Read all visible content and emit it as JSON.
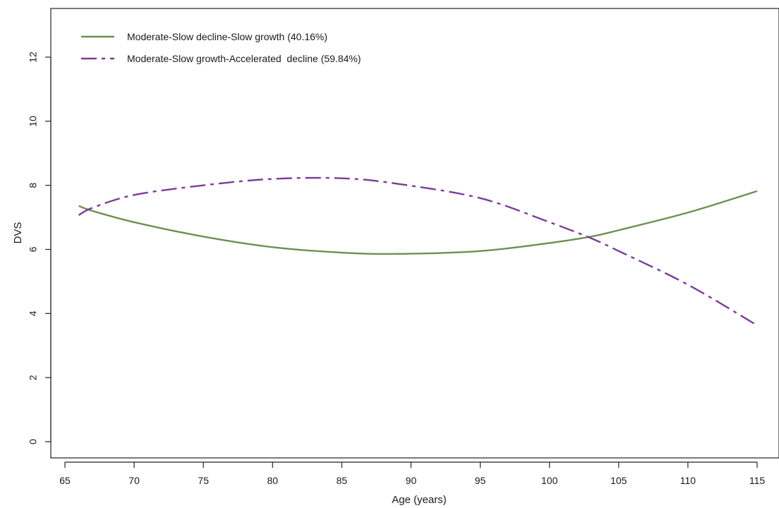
{
  "chart_data": {
    "type": "line",
    "title": "",
    "xlabel": "Age (years)",
    "ylabel": "DVS",
    "xlim": [
      65,
      115
    ],
    "ylim": [
      0,
      12
    ],
    "xticks": [
      65,
      70,
      75,
      80,
      85,
      90,
      95,
      100,
      105,
      110,
      115
    ],
    "yticks": [
      0,
      2,
      4,
      6,
      8,
      10,
      12
    ],
    "x_tick_labels": [
      "65",
      "70",
      "75",
      "80",
      "85",
      "90",
      "95",
      "100",
      "105",
      "110",
      "115"
    ],
    "y_tick_labels": [
      "0",
      "2",
      "4",
      "6",
      "8",
      "10",
      "12"
    ],
    "grid": false,
    "legend_position": "top-left",
    "x": [
      66,
      67,
      70,
      75,
      80,
      85,
      89,
      95,
      100,
      103,
      105,
      110,
      115
    ],
    "series": [
      {
        "name": "Moderate-Slow decline-Slow growth (40.16%)",
        "color": "#6f8f52",
        "style": "solid",
        "values": [
          7.36,
          7.2,
          6.85,
          6.4,
          6.07,
          5.9,
          5.86,
          5.95,
          6.2,
          6.4,
          6.6,
          7.15,
          7.82
        ]
      },
      {
        "name": "Moderate-Slow growth-Accelerated  decline (59.84%)",
        "color": "#7d3c98",
        "style": "dashdot",
        "values": [
          7.07,
          7.3,
          7.7,
          8.0,
          8.2,
          8.22,
          8.05,
          7.6,
          6.85,
          6.35,
          5.95,
          4.9,
          3.63
        ]
      }
    ]
  }
}
